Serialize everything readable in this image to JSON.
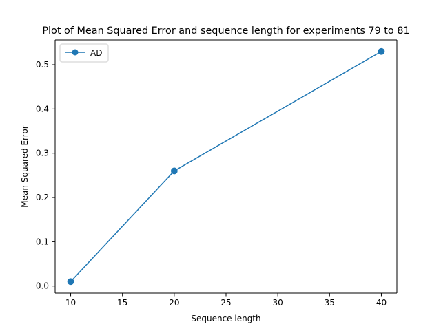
{
  "chart_data": {
    "type": "line",
    "title": "Plot of Mean Squared Error and sequence length for experiments 79 to 81",
    "xlabel": "Sequence length",
    "ylabel": "Mean Squared Error",
    "xlim": [
      8.5,
      41.5
    ],
    "ylim": [
      -0.016,
      0.556
    ],
    "x_ticks": [
      10,
      15,
      20,
      25,
      30,
      35,
      40
    ],
    "x_tick_labels": [
      "10",
      "15",
      "20",
      "25",
      "30",
      "35",
      "40"
    ],
    "y_ticks": [
      0.0,
      0.1,
      0.2,
      0.3,
      0.4,
      0.5
    ],
    "y_tick_labels": [
      "0.0",
      "0.1",
      "0.2",
      "0.3",
      "0.4",
      "0.5"
    ],
    "grid": false,
    "legend_position": "upper left",
    "series": [
      {
        "name": "AD",
        "color": "#1f77b4",
        "marker": "circle",
        "x": [
          10,
          20,
          40
        ],
        "y": [
          0.01,
          0.26,
          0.53
        ]
      }
    ]
  }
}
